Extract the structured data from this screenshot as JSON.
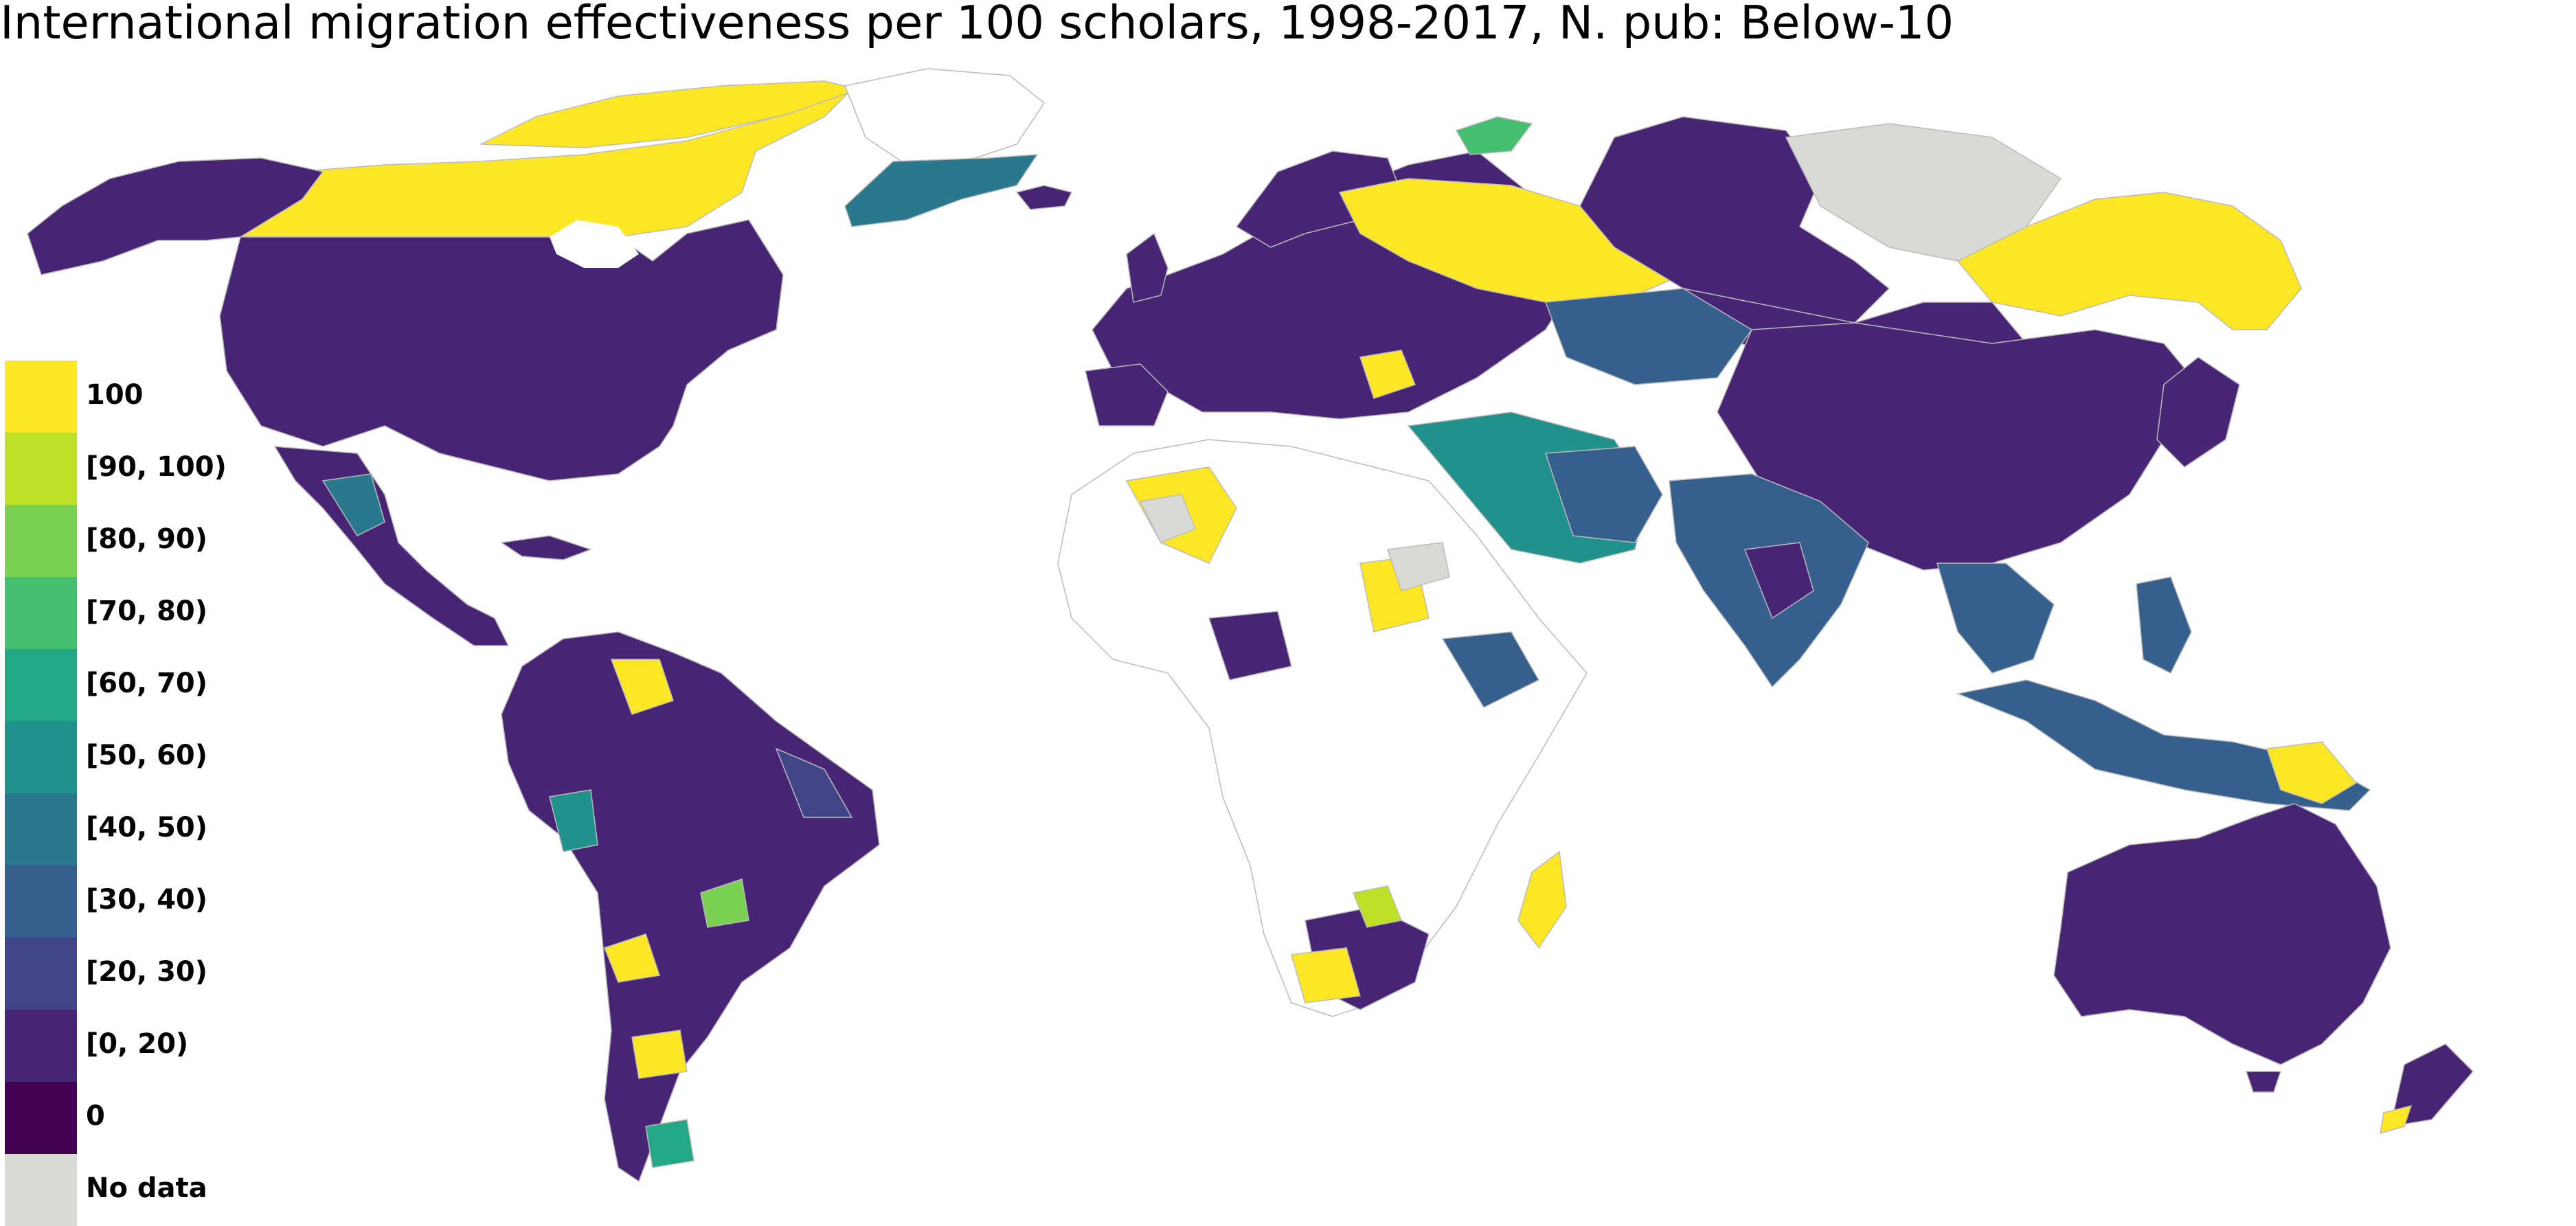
{
  "title": "International migration effectiveness per 100 scholars, 1998-2017, N. pub: Below-10",
  "colors": {
    "q100": "#fde725",
    "q90": "#bddf26",
    "q80": "#7ad151",
    "q70": "#44bf70",
    "q60": "#22a884",
    "q50": "#21918c",
    "q40": "#2a788e",
    "q30": "#355f8d",
    "q20": "#414487",
    "q0to20": "#482475",
    "q0": "#440154",
    "nodata": "#d9d9d6",
    "border": "#bbbbbb"
  },
  "legend": [
    {
      "label": "100",
      "color": "#fde725"
    },
    {
      "label": "[90, 100)",
      "color": "#bddf26"
    },
    {
      "label": "[80, 90)",
      "color": "#7ad151"
    },
    {
      "label": "[70, 80)",
      "color": "#44bf70"
    },
    {
      "label": "[60, 70)",
      "color": "#22a884"
    },
    {
      "label": "[50, 60)",
      "color": "#21918c"
    },
    {
      "label": "[40, 50)",
      "color": "#2a788e"
    },
    {
      "label": "[30, 40)",
      "color": "#355f8d"
    },
    {
      "label": "[20, 30)",
      "color": "#414487"
    },
    {
      "label": "[0, 20)",
      "color": "#482475"
    },
    {
      "label": "0",
      "color": "#440154"
    },
    {
      "label": "No data",
      "color": "#d9d9d6"
    }
  ]
}
